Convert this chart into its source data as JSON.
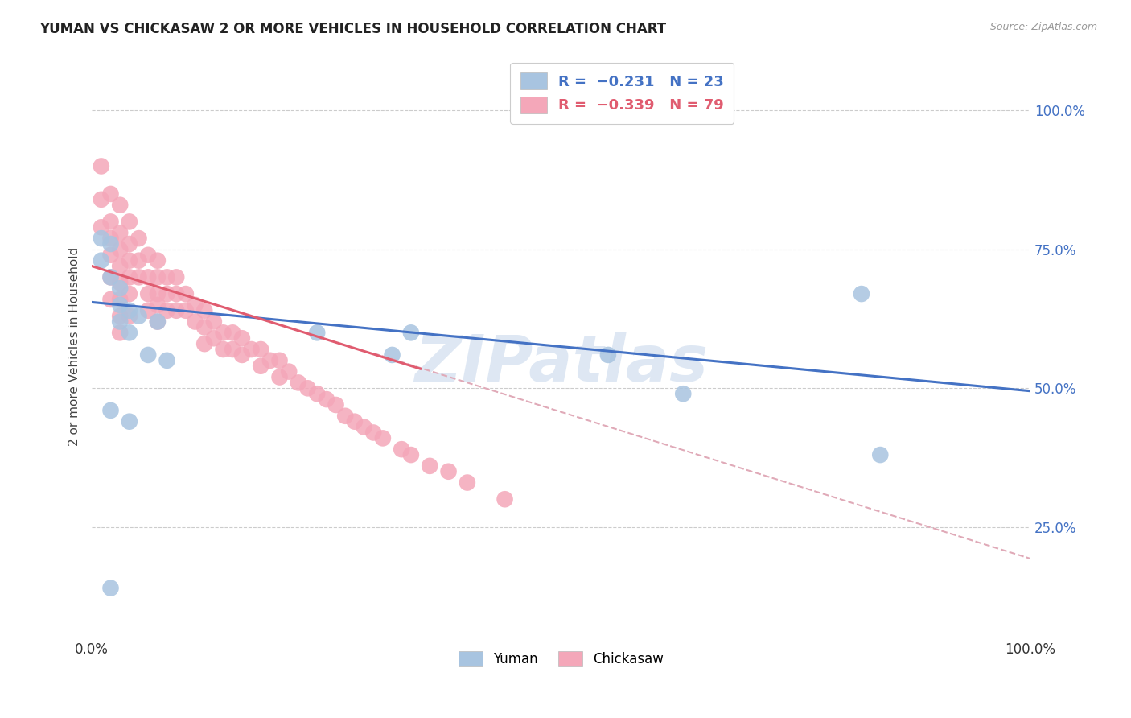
{
  "title": "YUMAN VS CHICKASAW 2 OR MORE VEHICLES IN HOUSEHOLD CORRELATION CHART",
  "source": "Source: ZipAtlas.com",
  "ylabel": "2 or more Vehicles in Household",
  "ytick_values": [
    0.25,
    0.5,
    0.75,
    1.0
  ],
  "xlim": [
    0.0,
    1.0
  ],
  "ylim": [
    0.05,
    1.1
  ],
  "background_color": "#ffffff",
  "grid_color": "#cccccc",
  "yuman_color": "#a8c4e0",
  "chickasaw_color": "#f4a7b9",
  "yuman_line_color": "#4472c4",
  "chickasaw_line_color": "#e05c70",
  "dashed_line_color": "#e0aab8",
  "watermark_color": "#c8d8ec",
  "yuman_scatter_x": [
    0.01,
    0.01,
    0.02,
    0.02,
    0.03,
    0.03,
    0.03,
    0.04,
    0.04,
    0.05,
    0.06,
    0.07,
    0.08,
    0.24,
    0.32,
    0.34,
    0.55,
    0.63,
    0.82,
    0.84,
    0.04,
    0.02,
    0.02
  ],
  "yuman_scatter_y": [
    0.77,
    0.73,
    0.76,
    0.7,
    0.68,
    0.65,
    0.62,
    0.64,
    0.6,
    0.63,
    0.56,
    0.62,
    0.55,
    0.6,
    0.56,
    0.6,
    0.56,
    0.49,
    0.67,
    0.38,
    0.44,
    0.46,
    0.14
  ],
  "chickasaw_scatter_x": [
    0.01,
    0.01,
    0.01,
    0.02,
    0.02,
    0.02,
    0.02,
    0.02,
    0.02,
    0.03,
    0.03,
    0.03,
    0.03,
    0.03,
    0.03,
    0.03,
    0.03,
    0.04,
    0.04,
    0.04,
    0.04,
    0.04,
    0.04,
    0.05,
    0.05,
    0.05,
    0.06,
    0.06,
    0.06,
    0.06,
    0.07,
    0.07,
    0.07,
    0.07,
    0.07,
    0.08,
    0.08,
    0.08,
    0.09,
    0.09,
    0.09,
    0.1,
    0.1,
    0.11,
    0.11,
    0.12,
    0.12,
    0.12,
    0.13,
    0.13,
    0.14,
    0.14,
    0.15,
    0.15,
    0.16,
    0.16,
    0.17,
    0.18,
    0.18,
    0.19,
    0.2,
    0.2,
    0.21,
    0.22,
    0.23,
    0.24,
    0.25,
    0.26,
    0.27,
    0.28,
    0.29,
    0.3,
    0.31,
    0.33,
    0.34,
    0.36,
    0.38,
    0.4,
    0.44
  ],
  "chickasaw_scatter_y": [
    0.9,
    0.84,
    0.79,
    0.85,
    0.8,
    0.77,
    0.74,
    0.7,
    0.66,
    0.83,
    0.78,
    0.75,
    0.72,
    0.69,
    0.66,
    0.63,
    0.6,
    0.8,
    0.76,
    0.73,
    0.7,
    0.67,
    0.63,
    0.77,
    0.73,
    0.7,
    0.74,
    0.7,
    0.67,
    0.64,
    0.73,
    0.7,
    0.67,
    0.65,
    0.62,
    0.7,
    0.67,
    0.64,
    0.7,
    0.67,
    0.64,
    0.67,
    0.64,
    0.65,
    0.62,
    0.64,
    0.61,
    0.58,
    0.62,
    0.59,
    0.6,
    0.57,
    0.6,
    0.57,
    0.59,
    0.56,
    0.57,
    0.57,
    0.54,
    0.55,
    0.55,
    0.52,
    0.53,
    0.51,
    0.5,
    0.49,
    0.48,
    0.47,
    0.45,
    0.44,
    0.43,
    0.42,
    0.41,
    0.39,
    0.38,
    0.36,
    0.35,
    0.33,
    0.3
  ],
  "yuman_line_x0": 0.0,
  "yuman_line_y0": 0.655,
  "yuman_line_x1": 1.0,
  "yuman_line_y1": 0.495,
  "chickasaw_line_x0": 0.0,
  "chickasaw_line_y0": 0.72,
  "chickasaw_line_x1": 0.35,
  "chickasaw_line_y1": 0.535,
  "dashed_line_x0": 0.3,
  "dashed_line_y0": 0.563,
  "dashed_line_x1": 1.0,
  "dashed_line_y1": 0.193
}
